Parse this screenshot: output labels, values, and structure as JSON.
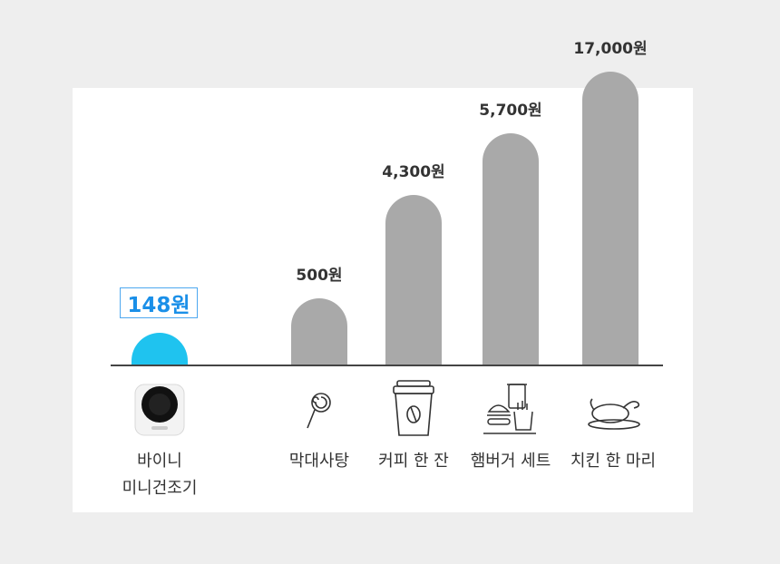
{
  "chart_data": {
    "type": "bar",
    "categories": [
      [
        "바이니",
        "미니건조기"
      ],
      [
        "막대사탕"
      ],
      [
        "커피 한 잔"
      ],
      [
        "햄버거 세트"
      ],
      [
        "치킨 한 마리"
      ]
    ],
    "values": [
      148,
      500,
      4300,
      5700,
      17000
    ],
    "value_labels": [
      "148원",
      "500원",
      "4,300원",
      "5,700원",
      "17,000원"
    ],
    "highlight_index": 0,
    "icons": [
      "mini-dryer-icon",
      "lollipop-icon",
      "coffee-cup-icon",
      "burger-set-icon",
      "roast-chicken-icon"
    ],
    "colors": {
      "highlight": "#1fc3ef",
      "bar": "#a9a9a9",
      "highlight_text": "#1a8fe8",
      "baseline": "#444444"
    }
  }
}
